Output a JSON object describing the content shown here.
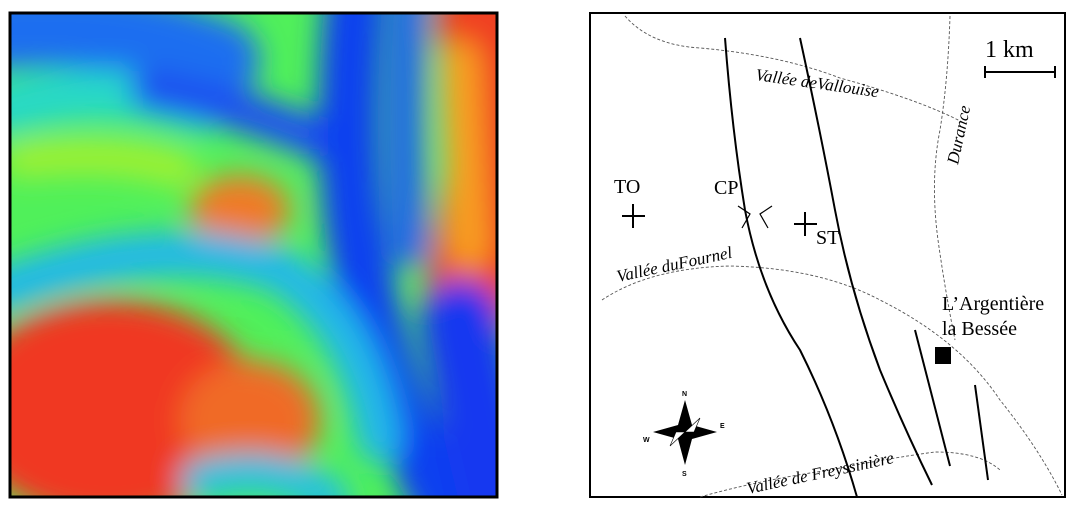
{
  "map": {
    "scale_bar": "1 km",
    "rivers": [
      "Vallée deVallouise",
      "Durance",
      "Vallée duFournel",
      "Vallée de Freyssinière"
    ],
    "sites": [
      "TO",
      "CP",
      "ST"
    ],
    "town": [
      "L’Argentière",
      "la Bessée"
    ],
    "compass": [
      "N",
      "E",
      "S",
      "W"
    ]
  }
}
